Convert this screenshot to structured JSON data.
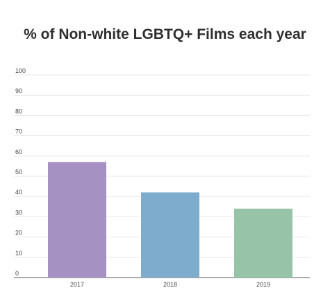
{
  "chart_data": {
    "type": "bar",
    "title": "% of Non-white LGBTQ+ Films each year",
    "categories": [
      "2017",
      "2018",
      "2019"
    ],
    "values": [
      57,
      42,
      34
    ],
    "bar_colors": [
      "#a591c2",
      "#7eaccd",
      "#97c4a8"
    ],
    "ylim": [
      0,
      100
    ],
    "yticks": [
      "0",
      "10",
      "20",
      "30",
      "40",
      "50",
      "60",
      "70",
      "80",
      "90",
      "100"
    ],
    "grid": true,
    "legend": "none",
    "xlabel": "",
    "ylabel": ""
  }
}
